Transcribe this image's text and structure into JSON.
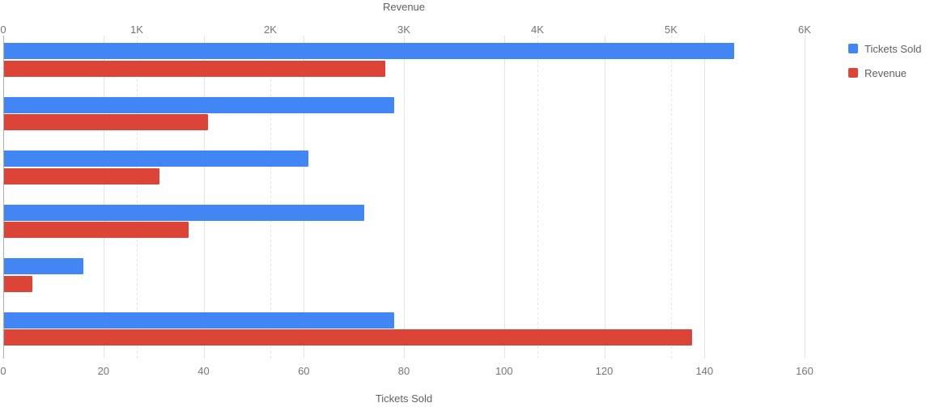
{
  "chart_data": {
    "type": "bar",
    "orientation": "horizontal",
    "title": "",
    "group_count": 6,
    "grid": true,
    "legend_position": "right",
    "series": [
      {
        "name": "Tickets Sold",
        "color": "#4285f4",
        "axis": "bottom",
        "values": [
          146,
          78,
          61,
          72,
          16,
          78
        ]
      },
      {
        "name": "Revenue",
        "color": "#db4437",
        "axis": "top",
        "values": [
          2860,
          1530,
          1170,
          1390,
          220,
          5160
        ]
      }
    ],
    "axes": {
      "top": {
        "title": "Revenue",
        "min": 0,
        "max": 6000,
        "tick_values": [
          0,
          1000,
          2000,
          3000,
          4000,
          5000,
          6000
        ],
        "tick_labels": [
          "0",
          "1K",
          "2K",
          "3K",
          "4K",
          "5K",
          "6K"
        ],
        "gridline_style": "dashed"
      },
      "bottom": {
        "title": "Tickets Sold",
        "min": 0,
        "max": 160,
        "tick_values": [
          0,
          20,
          40,
          60,
          80,
          100,
          120,
          140,
          160
        ],
        "tick_labels": [
          "0",
          "20",
          "40",
          "60",
          "80",
          "100",
          "120",
          "140",
          "160"
        ],
        "gridline_style": "solid"
      }
    }
  },
  "legend": {
    "items": [
      {
        "label": "Tickets Sold",
        "color": "#4285f4"
      },
      {
        "label": "Revenue",
        "color": "#db4437"
      }
    ]
  },
  "colors": {
    "tick_label": "#757575",
    "axis_title": "#616161",
    "gridline": "#e3e3e3",
    "baseline": "#b0b0b0",
    "background": "#ffffff"
  }
}
